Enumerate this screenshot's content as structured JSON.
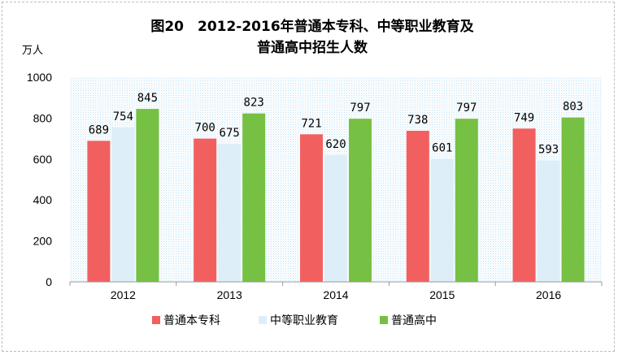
{
  "chart_data": {
    "type": "bar",
    "title_line1": "图20　2012-2016年普通本专科、中等职业教育及",
    "title_line2": "普通高中招生人数",
    "unit_label": "万人",
    "categories": [
      "2012",
      "2013",
      "2014",
      "2015",
      "2016"
    ],
    "series": [
      {
        "name": "普通本专科",
        "color": "#f25f5f",
        "values": [
          689,
          700,
          721,
          738,
          749
        ]
      },
      {
        "name": "中等职业教育",
        "color": "#ddeef8",
        "values": [
          754,
          675,
          620,
          601,
          593
        ]
      },
      {
        "name": "普通高中",
        "color": "#76c043",
        "values": [
          845,
          823,
          797,
          797,
          803
        ]
      }
    ],
    "yticks": [
      0,
      200,
      400,
      600,
      800,
      1000
    ],
    "ylim": [
      0,
      1000
    ],
    "grid": false,
    "legend_position": "bottom",
    "plot_background": "dotted light blue"
  }
}
